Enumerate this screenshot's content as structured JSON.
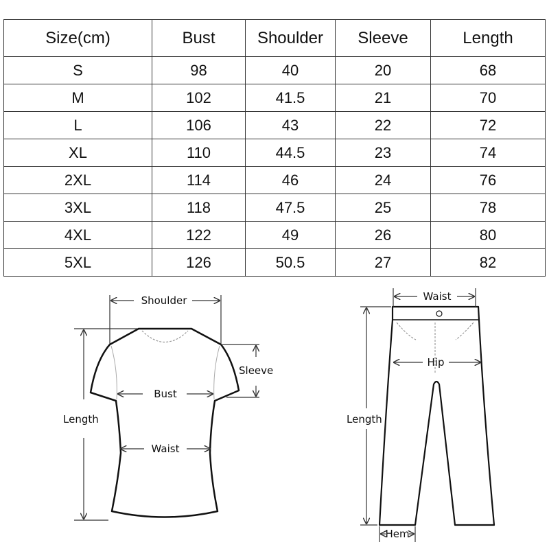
{
  "table": {
    "headers": [
      "Size(cm)",
      "Bust",
      "Shoulder",
      "Sleeve",
      "Length"
    ],
    "rows": [
      [
        "S",
        "98",
        "40",
        "20",
        "68"
      ],
      [
        "M",
        "102",
        "41.5",
        "21",
        "70"
      ],
      [
        "L",
        "106",
        "43",
        "22",
        "72"
      ],
      [
        "XL",
        "110",
        "44.5",
        "23",
        "74"
      ],
      [
        "2XL",
        "114",
        "46",
        "24",
        "76"
      ],
      [
        "3XL",
        "118",
        "47.5",
        "25",
        "78"
      ],
      [
        "4XL",
        "122",
        "49",
        "26",
        "80"
      ],
      [
        "5XL",
        "126",
        "50.5",
        "27",
        "82"
      ]
    ]
  },
  "shirt_diagram": {
    "shoulder": "Shoulder",
    "sleeve": "Sleeve",
    "bust": "Bust",
    "length": "Length",
    "waist": "Waist"
  },
  "pants_diagram": {
    "waist": "Waist",
    "hip": "Hip",
    "length": "Length",
    "hem": "Hem"
  }
}
